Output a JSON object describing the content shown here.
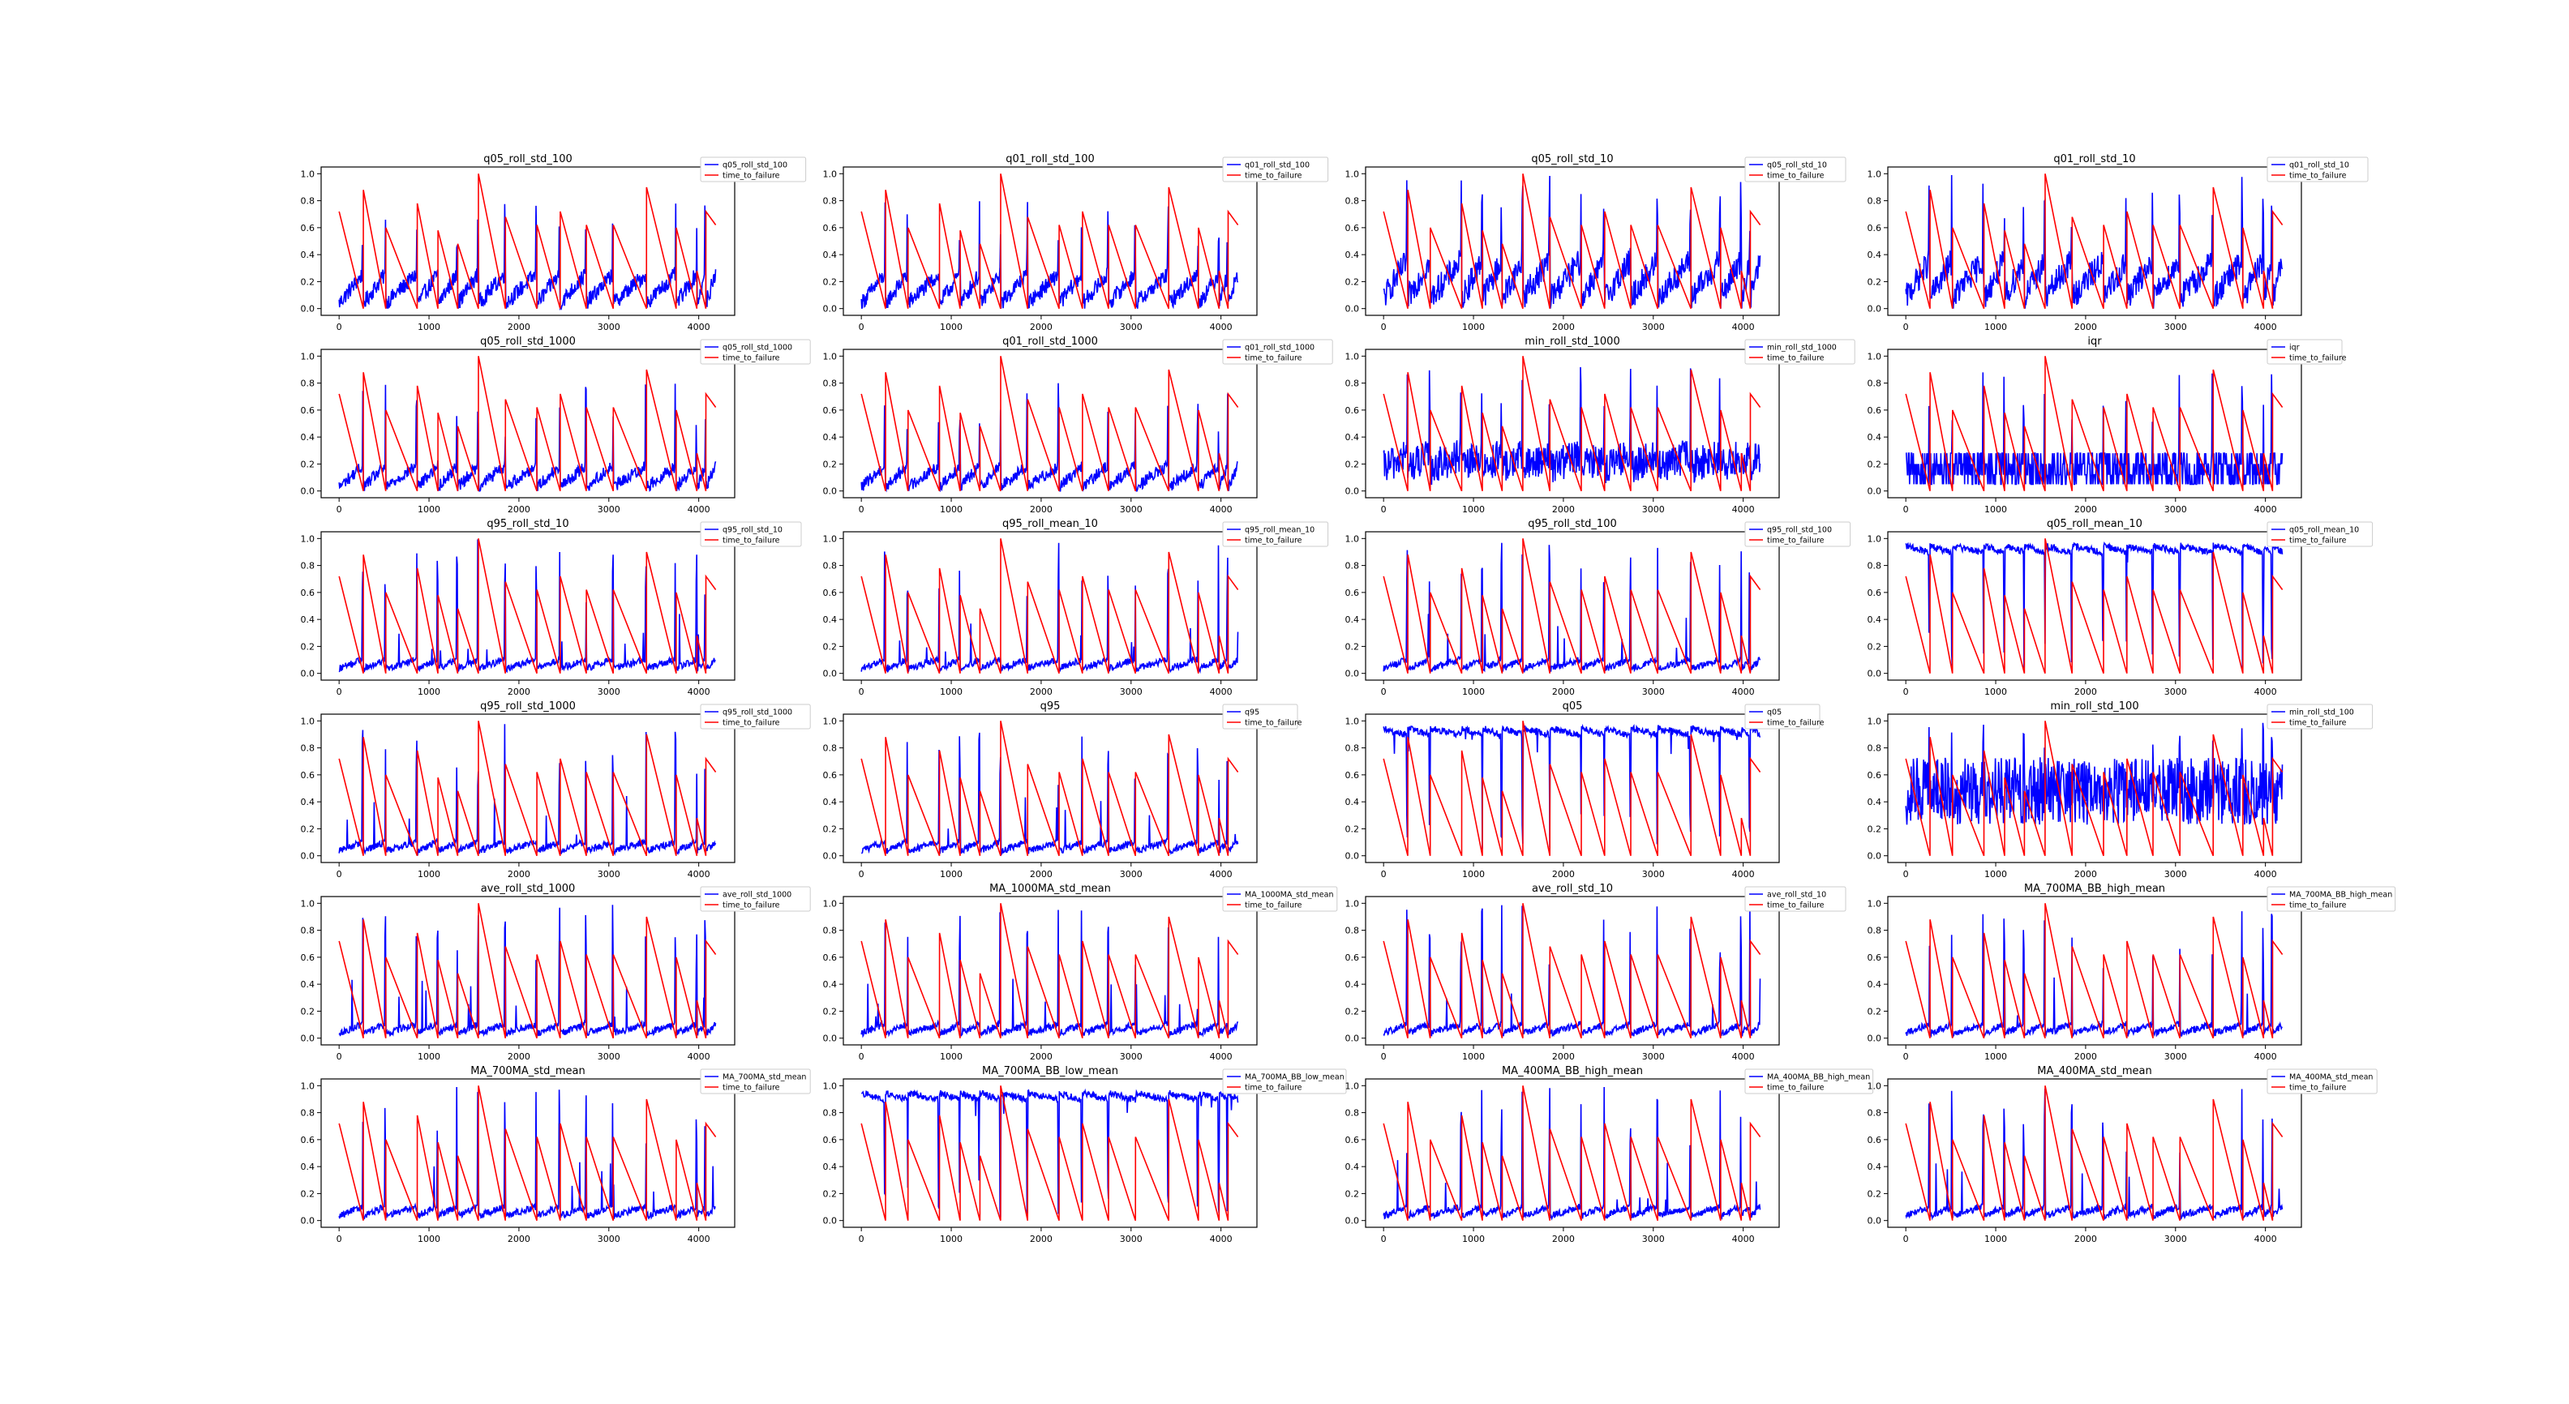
{
  "colors": {
    "feature": "#0000ff",
    "target": "#ff0000",
    "axis": "#000000"
  },
  "chart_data": [
    {
      "type": "line",
      "title": "q05_roll_std_100",
      "series": [
        {
          "name": "q05_roll_std_100",
          "color": "#0000ff"
        },
        {
          "name": "time_to_failure",
          "color": "#ff0000"
        }
      ],
      "xlim": [
        -200,
        4400
      ],
      "ylim": [
        -0.05,
        1.05
      ],
      "xticks": [
        0,
        1000,
        2000,
        3000,
        4000
      ],
      "yticks": [
        0.0,
        0.2,
        0.4,
        0.6,
        0.8,
        1.0
      ],
      "legend": "top-right"
    },
    {
      "type": "line",
      "title": "q01_roll_std_100",
      "series": [
        {
          "name": "q01_roll_std_100",
          "color": "#0000ff"
        },
        {
          "name": "time_to_failure",
          "color": "#ff0000"
        }
      ],
      "xlim": [
        -200,
        4400
      ],
      "ylim": [
        -0.05,
        1.05
      ],
      "xticks": [
        0,
        1000,
        2000,
        3000,
        4000
      ],
      "yticks": [
        0.0,
        0.2,
        0.4,
        0.6,
        0.8,
        1.0
      ],
      "legend": "top-right"
    },
    {
      "type": "line",
      "title": "q05_roll_std_10",
      "series": [
        {
          "name": "q05_roll_std_10",
          "color": "#0000ff"
        },
        {
          "name": "time_to_failure",
          "color": "#ff0000"
        }
      ],
      "xlim": [
        -200,
        4400
      ],
      "ylim": [
        -0.05,
        1.05
      ],
      "xticks": [
        0,
        1000,
        2000,
        3000,
        4000
      ],
      "yticks": [
        0.0,
        0.2,
        0.4,
        0.6,
        0.8,
        1.0
      ],
      "legend": "top-right"
    },
    {
      "type": "line",
      "title": "q01_roll_std_10",
      "series": [
        {
          "name": "q01_roll_std_10",
          "color": "#0000ff"
        },
        {
          "name": "time_to_failure",
          "color": "#ff0000"
        }
      ],
      "xlim": [
        -200,
        4400
      ],
      "ylim": [
        -0.05,
        1.05
      ],
      "xticks": [
        0,
        1000,
        2000,
        3000,
        4000
      ],
      "yticks": [
        0.0,
        0.2,
        0.4,
        0.6,
        0.8,
        1.0
      ],
      "legend": "top-right"
    },
    {
      "type": "line",
      "title": "q05_roll_std_1000",
      "series": [
        {
          "name": "q05_roll_std_1000",
          "color": "#0000ff"
        },
        {
          "name": "time_to_failure",
          "color": "#ff0000"
        }
      ],
      "xlim": [
        -200,
        4400
      ],
      "ylim": [
        -0.05,
        1.05
      ],
      "xticks": [
        0,
        1000,
        2000,
        3000,
        4000
      ],
      "yticks": [
        0.0,
        0.2,
        0.4,
        0.6,
        0.8,
        1.0
      ],
      "legend": "top-right"
    },
    {
      "type": "line",
      "title": "q01_roll_std_1000",
      "series": [
        {
          "name": "q01_roll_std_1000",
          "color": "#0000ff"
        },
        {
          "name": "time_to_failure",
          "color": "#ff0000"
        }
      ],
      "xlim": [
        -200,
        4400
      ],
      "ylim": [
        -0.05,
        1.05
      ],
      "xticks": [
        0,
        1000,
        2000,
        3000,
        4000
      ],
      "yticks": [
        0.0,
        0.2,
        0.4,
        0.6,
        0.8,
        1.0
      ],
      "legend": "top-right"
    },
    {
      "type": "line",
      "title": "min_roll_std_1000",
      "series": [
        {
          "name": "min_roll_std_1000",
          "color": "#0000ff"
        },
        {
          "name": "time_to_failure",
          "color": "#ff0000"
        }
      ],
      "xlim": [
        -200,
        4400
      ],
      "ylim": [
        -0.05,
        1.05
      ],
      "xticks": [
        0,
        1000,
        2000,
        3000,
        4000
      ],
      "yticks": [
        0.0,
        0.2,
        0.4,
        0.6,
        0.8,
        1.0
      ],
      "legend": "top-right"
    },
    {
      "type": "line",
      "title": "iqr",
      "series": [
        {
          "name": "iqr",
          "color": "#0000ff"
        },
        {
          "name": "time_to_failure",
          "color": "#ff0000"
        }
      ],
      "xlim": [
        -200,
        4400
      ],
      "ylim": [
        -0.05,
        1.05
      ],
      "xticks": [
        0,
        1000,
        2000,
        3000,
        4000
      ],
      "yticks": [
        0.0,
        0.2,
        0.4,
        0.6,
        0.8,
        1.0
      ],
      "legend": "top-right"
    },
    {
      "type": "line",
      "title": "q95_roll_std_10",
      "series": [
        {
          "name": "q95_roll_std_10",
          "color": "#0000ff"
        },
        {
          "name": "time_to_failure",
          "color": "#ff0000"
        }
      ],
      "xlim": [
        -200,
        4400
      ],
      "ylim": [
        -0.05,
        1.05
      ],
      "xticks": [
        0,
        1000,
        2000,
        3000,
        4000
      ],
      "yticks": [
        0.0,
        0.2,
        0.4,
        0.6,
        0.8,
        1.0
      ],
      "legend": "top-right"
    },
    {
      "type": "line",
      "title": "q95_roll_mean_10",
      "series": [
        {
          "name": "q95_roll_mean_10",
          "color": "#0000ff"
        },
        {
          "name": "time_to_failure",
          "color": "#ff0000"
        }
      ],
      "xlim": [
        -200,
        4400
      ],
      "ylim": [
        -0.05,
        1.05
      ],
      "xticks": [
        0,
        1000,
        2000,
        3000,
        4000
      ],
      "yticks": [
        0.0,
        0.2,
        0.4,
        0.6,
        0.8,
        1.0
      ],
      "legend": "top-right"
    },
    {
      "type": "line",
      "title": "q95_roll_std_100",
      "series": [
        {
          "name": "q95_roll_std_100",
          "color": "#0000ff"
        },
        {
          "name": "time_to_failure",
          "color": "#ff0000"
        }
      ],
      "xlim": [
        -200,
        4400
      ],
      "ylim": [
        -0.05,
        1.05
      ],
      "xticks": [
        0,
        1000,
        2000,
        3000,
        4000
      ],
      "yticks": [
        0.0,
        0.2,
        0.4,
        0.6,
        0.8,
        1.0
      ],
      "legend": "top-right"
    },
    {
      "type": "line",
      "title": "q05_roll_mean_10",
      "series": [
        {
          "name": "q05_roll_mean_10",
          "color": "#0000ff"
        },
        {
          "name": "time_to_failure",
          "color": "#ff0000"
        }
      ],
      "xlim": [
        -200,
        4400
      ],
      "ylim": [
        -0.05,
        1.05
      ],
      "xticks": [
        0,
        1000,
        2000,
        3000,
        4000
      ],
      "yticks": [
        0.0,
        0.2,
        0.4,
        0.6,
        0.8,
        1.0
      ],
      "legend": "top-right"
    },
    {
      "type": "line",
      "title": "q95_roll_std_1000",
      "series": [
        {
          "name": "q95_roll_std_1000",
          "color": "#0000ff"
        },
        {
          "name": "time_to_failure",
          "color": "#ff0000"
        }
      ],
      "xlim": [
        -200,
        4400
      ],
      "ylim": [
        -0.05,
        1.05
      ],
      "xticks": [
        0,
        1000,
        2000,
        3000,
        4000
      ],
      "yticks": [
        0.0,
        0.2,
        0.4,
        0.6,
        0.8,
        1.0
      ],
      "legend": "top-right"
    },
    {
      "type": "line",
      "title": "q95",
      "series": [
        {
          "name": "q95",
          "color": "#0000ff"
        },
        {
          "name": "time_to_failure",
          "color": "#ff0000"
        }
      ],
      "xlim": [
        -200,
        4400
      ],
      "ylim": [
        -0.05,
        1.05
      ],
      "xticks": [
        0,
        1000,
        2000,
        3000,
        4000
      ],
      "yticks": [
        0.0,
        0.2,
        0.4,
        0.6,
        0.8,
        1.0
      ],
      "legend": "top-right"
    },
    {
      "type": "line",
      "title": "q05",
      "series": [
        {
          "name": "q05",
          "color": "#0000ff"
        },
        {
          "name": "time_to_failure",
          "color": "#ff0000"
        }
      ],
      "xlim": [
        -200,
        4400
      ],
      "ylim": [
        -0.05,
        1.05
      ],
      "xticks": [
        0,
        1000,
        2000,
        3000,
        4000
      ],
      "yticks": [
        0.0,
        0.2,
        0.4,
        0.6,
        0.8,
        1.0
      ],
      "legend": "top-right"
    },
    {
      "type": "line",
      "title": "min_roll_std_100",
      "series": [
        {
          "name": "min_roll_std_100",
          "color": "#0000ff"
        },
        {
          "name": "time_to_failure",
          "color": "#ff0000"
        }
      ],
      "xlim": [
        -200,
        4400
      ],
      "ylim": [
        -0.05,
        1.05
      ],
      "xticks": [
        0,
        1000,
        2000,
        3000,
        4000
      ],
      "yticks": [
        0.0,
        0.2,
        0.4,
        0.6,
        0.8,
        1.0
      ],
      "legend": "top-right"
    },
    {
      "type": "line",
      "title": "ave_roll_std_1000",
      "series": [
        {
          "name": "ave_roll_std_1000",
          "color": "#0000ff"
        },
        {
          "name": "time_to_failure",
          "color": "#ff0000"
        }
      ],
      "xlim": [
        -200,
        4400
      ],
      "ylim": [
        -0.05,
        1.05
      ],
      "xticks": [
        0,
        1000,
        2000,
        3000,
        4000
      ],
      "yticks": [
        0.0,
        0.2,
        0.4,
        0.6,
        0.8,
        1.0
      ],
      "legend": "top-right"
    },
    {
      "type": "line",
      "title": "MA_1000MA_std_mean",
      "series": [
        {
          "name": "MA_1000MA_std_mean",
          "color": "#0000ff"
        },
        {
          "name": "time_to_failure",
          "color": "#ff0000"
        }
      ],
      "xlim": [
        -200,
        4400
      ],
      "ylim": [
        -0.05,
        1.05
      ],
      "xticks": [
        0,
        1000,
        2000,
        3000,
        4000
      ],
      "yticks": [
        0.0,
        0.2,
        0.4,
        0.6,
        0.8,
        1.0
      ],
      "legend": "top-right"
    },
    {
      "type": "line",
      "title": "ave_roll_std_10",
      "series": [
        {
          "name": "ave_roll_std_10",
          "color": "#0000ff"
        },
        {
          "name": "time_to_failure",
          "color": "#ff0000"
        }
      ],
      "xlim": [
        -200,
        4400
      ],
      "ylim": [
        -0.05,
        1.05
      ],
      "xticks": [
        0,
        1000,
        2000,
        3000,
        4000
      ],
      "yticks": [
        0.0,
        0.2,
        0.4,
        0.6,
        0.8,
        1.0
      ],
      "legend": "top-right"
    },
    {
      "type": "line",
      "title": "MA_700MA_BB_high_mean",
      "series": [
        {
          "name": "MA_700MA_BB_high_mean",
          "color": "#0000ff"
        },
        {
          "name": "time_to_failure",
          "color": "#ff0000"
        }
      ],
      "xlim": [
        -200,
        4400
      ],
      "ylim": [
        -0.05,
        1.05
      ],
      "xticks": [
        0,
        1000,
        2000,
        3000,
        4000
      ],
      "yticks": [
        0.0,
        0.2,
        0.4,
        0.6,
        0.8,
        1.0
      ],
      "legend": "top-right"
    },
    {
      "type": "line",
      "title": "MA_700MA_std_mean",
      "series": [
        {
          "name": "MA_700MA_std_mean",
          "color": "#0000ff"
        },
        {
          "name": "time_to_failure",
          "color": "#ff0000"
        }
      ],
      "xlim": [
        -200,
        4400
      ],
      "ylim": [
        -0.05,
        1.05
      ],
      "xticks": [
        0,
        1000,
        2000,
        3000,
        4000
      ],
      "yticks": [
        0.0,
        0.2,
        0.4,
        0.6,
        0.8,
        1.0
      ],
      "legend": "top-right"
    },
    {
      "type": "line",
      "title": "MA_700MA_BB_low_mean",
      "series": [
        {
          "name": "MA_700MA_BB_low_mean",
          "color": "#0000ff"
        },
        {
          "name": "time_to_failure",
          "color": "#ff0000"
        }
      ],
      "xlim": [
        -200,
        4400
      ],
      "ylim": [
        -0.05,
        1.05
      ],
      "xticks": [
        0,
        1000,
        2000,
        3000,
        4000
      ],
      "yticks": [
        0.0,
        0.2,
        0.4,
        0.6,
        0.8,
        1.0
      ],
      "legend": "top-right"
    },
    {
      "type": "line",
      "title": "MA_400MA_BB_high_mean",
      "series": [
        {
          "name": "MA_400MA_BB_high_mean",
          "color": "#0000ff"
        },
        {
          "name": "time_to_failure",
          "color": "#ff0000"
        }
      ],
      "xlim": [
        -200,
        4400
      ],
      "ylim": [
        -0.05,
        1.05
      ],
      "xticks": [
        0,
        1000,
        2000,
        3000,
        4000
      ],
      "yticks": [
        0.0,
        0.2,
        0.4,
        0.6,
        0.8,
        1.0
      ],
      "legend": "top-right"
    },
    {
      "type": "line",
      "title": "MA_400MA_std_mean",
      "series": [
        {
          "name": "MA_400MA_std_mean",
          "color": "#0000ff"
        },
        {
          "name": "time_to_failure",
          "color": "#ff0000"
        }
      ],
      "xlim": [
        -200,
        4400
      ],
      "ylim": [
        -0.05,
        1.05
      ],
      "xticks": [
        0,
        1000,
        2000,
        3000,
        4000
      ],
      "yticks": [
        0.0,
        0.2,
        0.4,
        0.6,
        0.8,
        1.0
      ],
      "legend": "top-right"
    }
  ]
}
